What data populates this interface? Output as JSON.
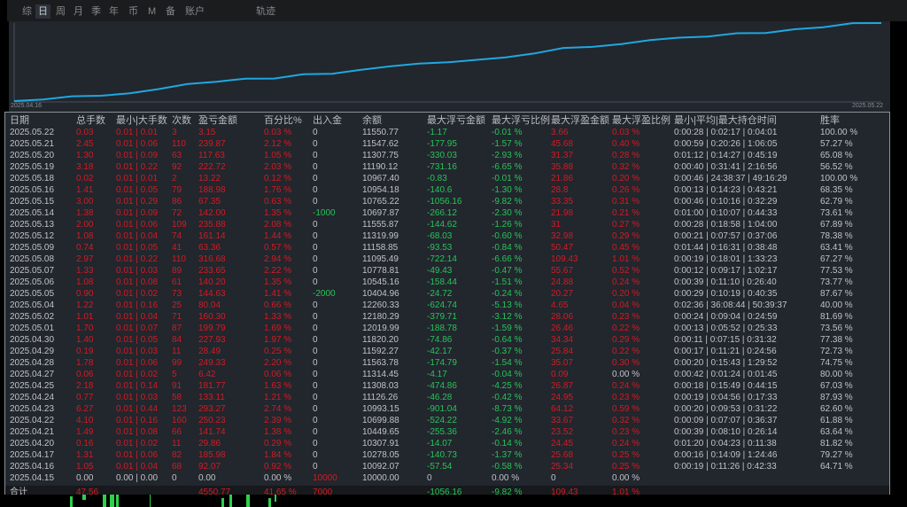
{
  "tabs": [
    {
      "label": "综"
    },
    {
      "label": "日",
      "selected": true
    },
    {
      "label": "周"
    },
    {
      "label": "月"
    },
    {
      "label": "季"
    },
    {
      "label": "年"
    },
    {
      "label": "币"
    },
    {
      "label": "M"
    },
    {
      "label": "备"
    },
    {
      "label": "账户"
    },
    {
      "label": "轨迹"
    }
  ],
  "equity_chart": {
    "start_label": "2025.04.16",
    "end_label": "2025.05.22",
    "line_color": "#1fa8e0"
  },
  "colors": {
    "profit": "#d01c24",
    "loss": "#27c45a",
    "neutral": "#c0c4c8",
    "panel": "#22262d"
  },
  "table": {
    "headers": [
      "日期",
      "总手数",
      "最小|大手数",
      "次数",
      "盈亏金额",
      "百分比%",
      "出入金",
      "余额",
      "最大浮亏金额",
      "最大浮亏比例",
      "最大浮盈金额",
      "最大浮盈比例",
      "最小|平均|最大持仓时间",
      "胜率"
    ],
    "rows": [
      [
        "2025.05.22",
        "0.03",
        "0.01 | 0.01",
        "3",
        "3.15",
        "0.03 %",
        "0",
        "11550.77",
        "-1.17",
        "-0.01 %",
        "3.66",
        "0.03 %",
        "0:00:28 | 0:02:17 | 0:04:01",
        "100.00 %"
      ],
      [
        "2025.05.21",
        "2.45",
        "0.01 | 0.06",
        "110",
        "239.87",
        "2.12 %",
        "0",
        "11547.62",
        "-177.95",
        "-1.57 %",
        "45.68",
        "0.40 %",
        "0:00:59 | 0:20:26 | 1:06:05",
        "57.27 %"
      ],
      [
        "2025.05.20",
        "1.30",
        "0.01 | 0.09",
        "63",
        "117.63",
        "1.05 %",
        "0",
        "11307.75",
        "-330.03",
        "-2.93 %",
        "31.37",
        "0.28 %",
        "0:01:12 | 0:14:27 | 0:45:19",
        "65.08 %"
      ],
      [
        "2025.05.19",
        "3.18",
        "0.01 | 0.22",
        "92",
        "222.72",
        "2.03 %",
        "0",
        "11190.12",
        "-731.16",
        "-6.65 %",
        "35.88",
        "0.32 %",
        "0:00:40 | 0:31:41 | 2:16:56",
        "56.52 %"
      ],
      [
        "2025.05.18",
        "0.02",
        "0.01 | 0.01",
        "2",
        "13.22",
        "0.12 %",
        "0",
        "10967.40",
        "-0.83",
        "-0.01 %",
        "21.86",
        "0.20 %",
        "0:00:46 | 24:38:37 | 49:16:29",
        "100.00 %"
      ],
      [
        "2025.05.16",
        "1.41",
        "0.01 | 0.05",
        "79",
        "188.98",
        "1.76 %",
        "0",
        "10954.18",
        "-140.6",
        "-1.30 %",
        "28.8",
        "0.26 %",
        "0:00:13 | 0:14:23 | 0:43:21",
        "68.35 %"
      ],
      [
        "2025.05.15",
        "3.00",
        "0.01 | 0.29",
        "86",
        "67.35",
        "0.63 %",
        "0",
        "10765.22",
        "-1056.16",
        "-9.82 %",
        "33.35",
        "0.31 %",
        "0:00:46 | 0:10:16 | 0:32:29",
        "62.79 %"
      ],
      [
        "2025.05.14",
        "1.38",
        "0.01 | 0.09",
        "72",
        "142.00",
        "1.35 %",
        "-1000",
        "10697.87",
        "-266.12",
        "-2.30 %",
        "21.98",
        "0.21 %",
        "0:01:00 | 0:10:07 | 0:44:33",
        "73.61 %"
      ],
      [
        "2025.05.13",
        "2.00",
        "0.01 | 0.06",
        "109",
        "235.88",
        "2.08 %",
        "0",
        "11555.87",
        "-144.62",
        "-1.26 %",
        "31",
        "0.27 %",
        "0:00:28 | 0:18:58 | 1:04:00",
        "67.89 %"
      ],
      [
        "2025.05.12",
        "1.08",
        "0.01 | 0.04",
        "74",
        "161.14",
        "1.44 %",
        "0",
        "11319.99",
        "-68.03",
        "-0.60 %",
        "32.98",
        "0.29 %",
        "0:00:21 | 0:07:57 | 0:37:06",
        "78.38 %"
      ],
      [
        "2025.05.09",
        "0.74",
        "0.01 | 0.05",
        "41",
        "63.36",
        "0.57 %",
        "0",
        "11158.85",
        "-93.53",
        "-0.84 %",
        "50.47",
        "0.45 %",
        "0:01:44 | 0:16:31 | 0:38:48",
        "63.41 %"
      ],
      [
        "2025.05.08",
        "2.97",
        "0.01 | 0.22",
        "110",
        "316.68",
        "2.94 %",
        "0",
        "11095.49",
        "-722.14",
        "-6.66 %",
        "109.43",
        "1.01 %",
        "0:00:19 | 0:18:01 | 1:33:23",
        "67.27 %"
      ],
      [
        "2025.05.07",
        "1.33",
        "0.01 | 0.03",
        "89",
        "233.65",
        "2.22 %",
        "0",
        "10778.81",
        "-49.43",
        "-0.47 %",
        "55.67",
        "0.52 %",
        "0:00:12 | 0:09:17 | 1:02:17",
        "77.53 %"
      ],
      [
        "2025.05.06",
        "1.08",
        "0.01 | 0.08",
        "61",
        "140.20",
        "1.35 %",
        "0",
        "10545.16",
        "-158.44",
        "-1.51 %",
        "24.88",
        "0.24 %",
        "0:00:39 | 0:11:10 | 0:26:40",
        "73.77 %"
      ],
      [
        "2025.05.05",
        "0.90",
        "0.01 | 0.02",
        "73",
        "144.63",
        "1.41 %",
        "-2000",
        "10404.96",
        "-24.72",
        "-0.24 %",
        "20.27",
        "0.20 %",
        "0:00:29 | 0:10:19 | 0:40:35",
        "87.67 %"
      ],
      [
        "2025.05.04",
        "1.22",
        "0.01 | 0.16",
        "25",
        "80.04",
        "0.66 %",
        "0",
        "12260.33",
        "-624.74",
        "-5.13 %",
        "4.65",
        "0.04 %",
        "0:02:36 | 36:08:44 | 50:39:37",
        "40.00 %"
      ],
      [
        "2025.05.02",
        "1.01",
        "0.01 | 0.04",
        "71",
        "160.30",
        "1.33 %",
        "0",
        "12180.29",
        "-379.71",
        "-3.12 %",
        "28.06",
        "0.23 %",
        "0:00:24 | 0:09:04 | 0:24:59",
        "81.69 %"
      ],
      [
        "2025.05.01",
        "1.70",
        "0.01 | 0.07",
        "87",
        "199.79",
        "1.69 %",
        "0",
        "12019.99",
        "-188.78",
        "-1.59 %",
        "26.46",
        "0.22 %",
        "0:00:13 | 0:05:52 | 0:25:33",
        "73.56 %"
      ],
      [
        "2025.04.30",
        "1.40",
        "0.01 | 0.05",
        "84",
        "227.93",
        "1.97 %",
        "0",
        "11820.20",
        "-74.86",
        "-0.64 %",
        "34.34",
        "0.29 %",
        "0:00:11 | 0:07:15 | 0:31:32",
        "77.38 %"
      ],
      [
        "2025.04.29",
        "0.19",
        "0.01 | 0.03",
        "11",
        "28.49",
        "0.25 %",
        "0",
        "11592.27",
        "-42.17",
        "-0.37 %",
        "25.84",
        "0.22 %",
        "0:00:17 | 0:11:21 | 0:24:56",
        "72.73 %"
      ],
      [
        "2025.04.28",
        "1.78",
        "0.01 | 0.06",
        "99",
        "249.33",
        "2.20 %",
        "0",
        "11563.78",
        "-174.79",
        "-1.54 %",
        "35.07",
        "0.30 %",
        "0:00:20 | 0:15:43 | 1:29:52",
        "74.75 %"
      ],
      [
        "2025.04.27",
        "0.06",
        "0.01 | 0.02",
        "5",
        "6.42",
        "0.06 %",
        "0",
        "11314.45",
        "-4.17",
        "-0.04 %",
        "0.09",
        "0.00 %",
        "0:00:42 | 0:01:24 | 0:01:45",
        "80.00 %"
      ],
      [
        "2025.04.25",
        "2.18",
        "0.01 | 0.14",
        "91",
        "181.77",
        "1.63 %",
        "0",
        "11308.03",
        "-474.86",
        "-4.25 %",
        "26.87",
        "0.24 %",
        "0:00:18 | 0:15:49 | 0:44:15",
        "67.03 %"
      ],
      [
        "2025.04.24",
        "0.77",
        "0.01 | 0.03",
        "58",
        "133.11",
        "1.21 %",
        "0",
        "11126.26",
        "-46.28",
        "-0.42 %",
        "24.95",
        "0.23 %",
        "0:00:19 | 0:04:56 | 0:17:33",
        "87.93 %"
      ],
      [
        "2025.04.23",
        "6.27",
        "0.01 | 0.44",
        "123",
        "293.27",
        "2.74 %",
        "0",
        "10993.15",
        "-901.04",
        "-8.73 %",
        "64.12",
        "0.59 %",
        "0:00:20 | 0:09:53 | 0:31:22",
        "62.60 %"
      ],
      [
        "2025.04.22",
        "4.10",
        "0.01 | 0.16",
        "160",
        "250.23",
        "2.39 %",
        "0",
        "10699.88",
        "-524.22",
        "-4.92 %",
        "33.67",
        "0.32 %",
        "0:00:09 | 0:07:07 | 0:36:37",
        "61.88 %"
      ],
      [
        "2025.04.21",
        "1.49",
        "0.01 | 0.08",
        "66",
        "141.74",
        "1.38 %",
        "0",
        "10449.65",
        "-255.36",
        "-2.46 %",
        "23.52",
        "0.23 %",
        "0:00:39 | 0:08:10 | 0:26:14",
        "63.64 %"
      ],
      [
        "2025.04.20",
        "0.16",
        "0.01 | 0.02",
        "11",
        "29.86",
        "0.29 %",
        "0",
        "10307.91",
        "-14.07",
        "-0.14 %",
        "24.45",
        "0.24 %",
        "0:01:20 | 0:04:23 | 0:11:38",
        "81.82 %"
      ],
      [
        "2025.04.17",
        "1.31",
        "0.01 | 0.06",
        "82",
        "185.98",
        "1.84 %",
        "0",
        "10278.05",
        "-140.73",
        "-1.37 %",
        "25.68",
        "0.25 %",
        "0:00:16 | 0:14:09 | 1:24:46",
        "79.27 %"
      ],
      [
        "2025.04.16",
        "1.05",
        "0.01 | 0.04",
        "68",
        "92.07",
        "0.92 %",
        "0",
        "10092.07",
        "-57.54",
        "-0.58 %",
        "25.34",
        "0.25 %",
        "0:00:19 | 0:11:26 | 0:42:33",
        "64.71 %"
      ],
      [
        "2025.04.15",
        "0.00",
        "0.00 | 0.00",
        "0",
        "0.00",
        "0.00 %",
        "10000",
        "10000.00",
        "0",
        "0.00 %",
        "0",
        "0.00 %",
        "",
        ""
      ]
    ],
    "total": [
      "合计",
      "47.56",
      "",
      "",
      "4550.77",
      "41.65 %",
      "7000",
      "",
      "-1056.16",
      "-9.82 %",
      "109.43",
      "1.01 %",
      "",
      ""
    ]
  }
}
